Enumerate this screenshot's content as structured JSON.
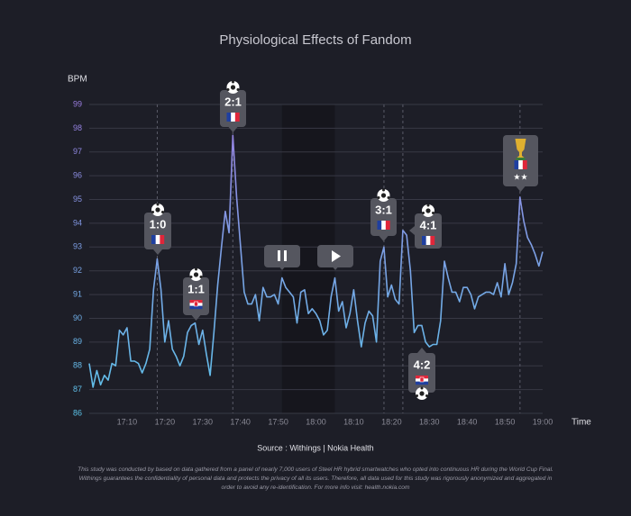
{
  "chart_data": {
    "type": "line",
    "title": "Physiological Effects of Fandom",
    "y_label": "BPM",
    "x_label": "Time",
    "source": "Source : Withings | Nokia Health",
    "footnote": [
      "This study was conducted by based on data gathered from a panel of nearly 7,000 users of Steel HR hybrid smartwatches who opted into continuous HR during the World Cup Final.",
      "Withings guarantees the confidentiality of personal data and protects the privacy of all its users. Therefore, all data used for this study was rigorously anonymized and aggregated in",
      "order to avoid any re-identification. For more info visit: health.nokia.com"
    ],
    "gradient": [
      "#9a7de0",
      "#5cc4ea"
    ],
    "grid": true,
    "xlim": [
      1020,
      1140
    ],
    "xticks": [
      {
        "value": 1030,
        "label": "17:10"
      },
      {
        "value": 1040,
        "label": "17:20"
      },
      {
        "value": 1050,
        "label": "17:30"
      },
      {
        "value": 1060,
        "label": "17:40"
      },
      {
        "value": 1070,
        "label": "17:50"
      },
      {
        "value": 1080,
        "label": "18:00"
      },
      {
        "value": 1090,
        "label": "18:10"
      },
      {
        "value": 1100,
        "label": "18:20"
      },
      {
        "value": 1110,
        "label": "18:30"
      },
      {
        "value": 1120,
        "label": "18:40"
      },
      {
        "value": 1130,
        "label": "18:50"
      },
      {
        "value": 1140,
        "label": "19:00"
      }
    ],
    "ylim": [
      86,
      99
    ],
    "yticks": [
      86,
      87,
      88,
      89,
      90,
      91,
      92,
      93,
      94,
      95,
      96,
      97,
      98,
      99
    ],
    "halftime": [
      1071,
      1085
    ],
    "x": [
      1020,
      1021,
      1022,
      1023,
      1024,
      1025,
      1026,
      1027,
      1028,
      1029,
      1030,
      1031,
      1032,
      1033,
      1034,
      1035,
      1036,
      1037,
      1038,
      1039,
      1040,
      1041,
      1042,
      1043,
      1044,
      1045,
      1046,
      1047,
      1048,
      1049,
      1050,
      1051,
      1052,
      1053,
      1054,
      1055,
      1056,
      1057,
      1058,
      1059,
      1060,
      1061,
      1062,
      1063,
      1064,
      1065,
      1066,
      1067,
      1068,
      1069,
      1070,
      1071,
      1072,
      1073,
      1074,
      1075,
      1076,
      1077,
      1078,
      1079,
      1080,
      1081,
      1082,
      1083,
      1084,
      1085,
      1086,
      1087,
      1088,
      1089,
      1090,
      1091,
      1092,
      1093,
      1094,
      1095,
      1096,
      1097,
      1098,
      1099,
      1100,
      1101,
      1102,
      1103,
      1104,
      1105,
      1106,
      1107,
      1108,
      1109,
      1110,
      1111,
      1112,
      1113,
      1114,
      1115,
      1116,
      1117,
      1118,
      1119,
      1120,
      1121,
      1122,
      1123,
      1124,
      1125,
      1126,
      1127,
      1128,
      1129,
      1130,
      1131,
      1132,
      1133,
      1134,
      1135,
      1136,
      1137,
      1138,
      1139,
      1140
    ],
    "values": [
      88.1,
      87.1,
      87.8,
      87.2,
      87.6,
      87.4,
      88.1,
      88.0,
      89.5,
      89.3,
      89.6,
      88.2,
      88.2,
      88.1,
      87.7,
      88.1,
      88.7,
      91.2,
      92.5,
      91.2,
      89.0,
      89.9,
      88.7,
      88.4,
      88.0,
      88.4,
      89.4,
      89.7,
      89.8,
      88.9,
      89.5,
      88.5,
      87.6,
      89.4,
      91.4,
      93.0,
      94.5,
      93.6,
      97.7,
      95.1,
      93.1,
      91.1,
      90.6,
      90.6,
      91.0,
      89.9,
      91.3,
      90.9,
      90.9,
      91.0,
      90.6,
      91.7,
      91.3,
      91.1,
      90.9,
      89.8,
      91.1,
      91.2,
      90.2,
      90.4,
      90.2,
      89.9,
      89.3,
      89.5,
      90.9,
      91.7,
      90.3,
      90.7,
      89.6,
      90.2,
      91.2,
      89.9,
      88.8,
      89.8,
      90.3,
      90.1,
      89.0,
      92.4,
      93.0,
      90.9,
      91.4,
      90.8,
      90.6,
      93.7,
      93.5,
      92.0,
      89.4,
      89.7,
      89.7,
      89.0,
      88.8,
      88.9,
      88.9,
      89.9,
      92.4,
      91.7,
      91.1,
      91.1,
      90.7,
      91.3,
      91.3,
      91.0,
      90.4,
      90.9,
      91.0,
      91.1,
      91.1,
      91.0,
      91.5,
      90.9,
      92.3,
      91.0,
      91.5,
      92.3,
      95.1,
      94.1,
      93.4,
      93.1,
      92.7,
      92.2,
      92.8
    ],
    "annotations": [
      {
        "x": 1038,
        "label": "1:0",
        "flag": "france"
      },
      {
        "x": 1048,
        "label": "1:1",
        "flag": "croatia"
      },
      {
        "x": 1058,
        "label": "2:1",
        "flag": "france"
      },
      {
        "x": 1098,
        "label": "3:1",
        "flag": "france"
      },
      {
        "x": 1103,
        "label": "4:1",
        "flag": "france"
      },
      {
        "x": 1108,
        "label": "4:2",
        "flag": "croatia"
      },
      {
        "x": 1134,
        "label": "★★",
        "flag": "france"
      }
    ]
  }
}
